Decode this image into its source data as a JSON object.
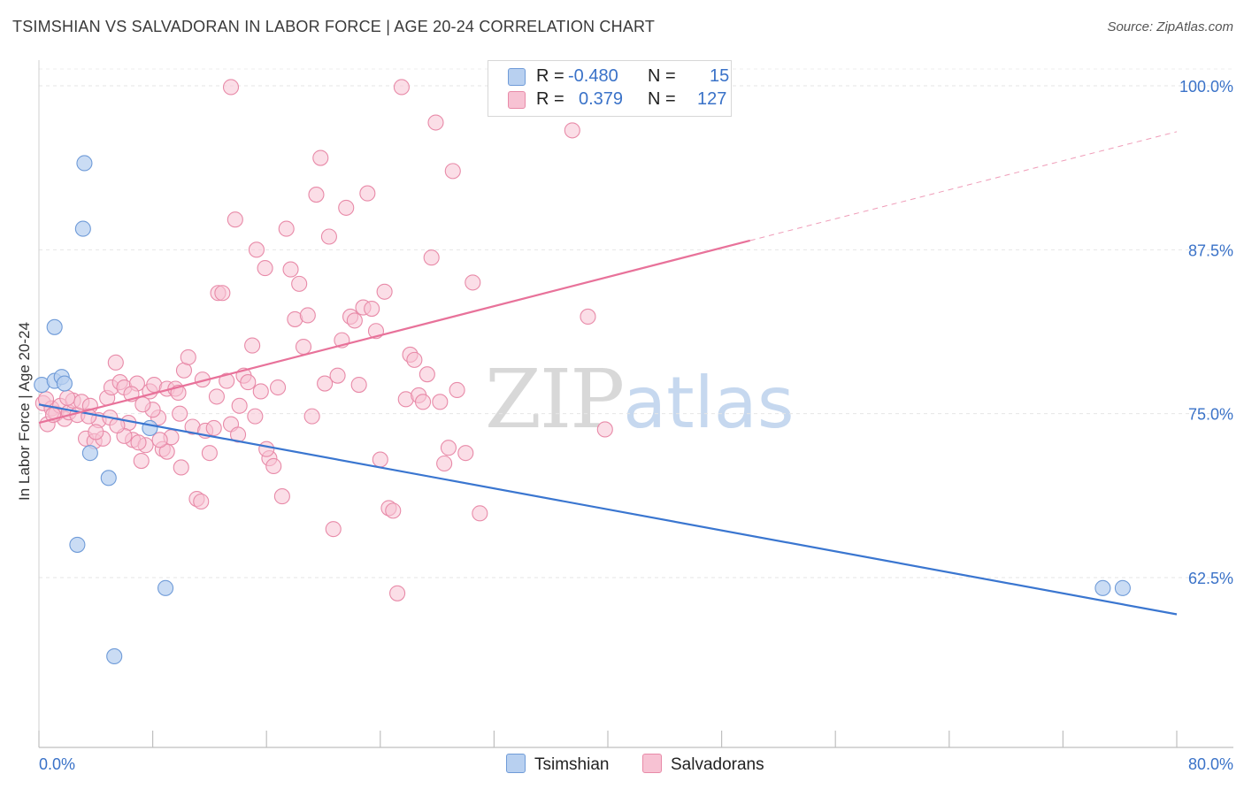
{
  "title": "TSIMSHIAN VS SALVADORAN IN LABOR FORCE | AGE 20-24 CORRELATION CHART",
  "source": "Source: ZipAtlas.com",
  "watermark": {
    "zip": "ZIP",
    "atlas": "atlas"
  },
  "colors": {
    "tsimshian_fill": "#b8d0f0",
    "tsimshian_stroke": "#6f9bd8",
    "tsimshian_line": "#3a76d0",
    "salvadoran_fill": "#f7c2d3",
    "salvadoran_stroke": "#e88aa8",
    "salvadoran_line": "#e8729a",
    "tick_label": "#3a72c8"
  },
  "legend": {
    "rows": [
      {
        "r_label": "R =",
        "r_value": "-0.480",
        "n_label": "N =",
        "n_value": "15"
      },
      {
        "r_label": "R =",
        "r_value": "0.379",
        "n_label": "N =",
        "n_value": "127"
      }
    ]
  },
  "chart_data": {
    "type": "scatter",
    "title": "TSIMSHIAN VS SALVADORAN IN LABOR FORCE | AGE 20-24 CORRELATION CHART",
    "xlabel": "",
    "ylabel": "In Labor Force | Age 20-24",
    "xlim": [
      0,
      80
    ],
    "ylim": [
      50,
      101
    ],
    "x_tick_labels": [
      "0.0%",
      "80.0%"
    ],
    "y_ticks": [
      62.5,
      75.0,
      87.5,
      100.0
    ],
    "y_tick_labels": [
      "62.5%",
      "75.0%",
      "87.5%",
      "100.0%"
    ],
    "grid": true,
    "legend_position": "top-center",
    "series": [
      {
        "name": "Tsimshian",
        "color": "#b8d0f0",
        "points": [
          [
            0.2,
            77.2
          ],
          [
            1.1,
            77.5
          ],
          [
            1.6,
            77.8
          ],
          [
            1.8,
            77.3
          ],
          [
            1.1,
            81.6
          ],
          [
            3.2,
            94.1
          ],
          [
            3.1,
            89.1
          ],
          [
            3.6,
            72.0
          ],
          [
            4.9,
            70.1
          ],
          [
            2.7,
            65.0
          ],
          [
            7.8,
            73.9
          ],
          [
            8.9,
            61.7
          ],
          [
            5.3,
            56.5
          ],
          [
            74.8,
            61.7
          ],
          [
            76.2,
            61.7
          ]
        ],
        "trend": {
          "x": [
            0,
            80
          ],
          "y": [
            75.7,
            59.7
          ]
        }
      },
      {
        "name": "Salvadorans",
        "color": "#f7c2d3",
        "points": [
          [
            0.3,
            75.8
          ],
          [
            0.6,
            74.2
          ],
          [
            0.9,
            75.4
          ],
          [
            1.2,
            75.0
          ],
          [
            1.5,
            75.6
          ],
          [
            1.8,
            74.6
          ],
          [
            2.1,
            75.1
          ],
          [
            2.4,
            76.0
          ],
          [
            2.7,
            74.9
          ],
          [
            3.0,
            75.9
          ],
          [
            3.3,
            73.1
          ],
          [
            3.6,
            75.6
          ],
          [
            3.9,
            72.9
          ],
          [
            4.2,
            74.5
          ],
          [
            4.5,
            73.1
          ],
          [
            4.8,
            76.2
          ],
          [
            5.1,
            77.0
          ],
          [
            5.4,
            78.9
          ],
          [
            5.7,
            77.4
          ],
          [
            6.0,
            77.0
          ],
          [
            6.3,
            74.3
          ],
          [
            6.6,
            73.0
          ],
          [
            6.9,
            77.3
          ],
          [
            7.2,
            71.4
          ],
          [
            7.5,
            72.6
          ],
          [
            7.8,
            76.7
          ],
          [
            8.1,
            77.2
          ],
          [
            8.4,
            74.7
          ],
          [
            8.7,
            72.3
          ],
          [
            9.0,
            76.9
          ],
          [
            9.3,
            73.2
          ],
          [
            9.6,
            76.9
          ],
          [
            9.9,
            75.0
          ],
          [
            10.2,
            78.3
          ],
          [
            10.5,
            79.3
          ],
          [
            10.8,
            74.0
          ],
          [
            11.1,
            68.5
          ],
          [
            11.4,
            68.3
          ],
          [
            11.7,
            73.7
          ],
          [
            12.0,
            72.0
          ],
          [
            12.3,
            73.9
          ],
          [
            12.6,
            84.2
          ],
          [
            12.9,
            84.2
          ],
          [
            13.2,
            77.5
          ],
          [
            13.5,
            74.2
          ],
          [
            13.8,
            89.8
          ],
          [
            14.1,
            75.6
          ],
          [
            14.4,
            77.9
          ],
          [
            14.7,
            77.4
          ],
          [
            15.0,
            80.2
          ],
          [
            15.3,
            87.5
          ],
          [
            15.6,
            76.7
          ],
          [
            15.9,
            86.1
          ],
          [
            16.2,
            71.6
          ],
          [
            16.5,
            71.0
          ],
          [
            16.8,
            77.0
          ],
          [
            17.1,
            68.7
          ],
          [
            17.4,
            89.1
          ],
          [
            17.7,
            86.0
          ],
          [
            18.0,
            82.2
          ],
          [
            18.3,
            84.9
          ],
          [
            18.6,
            80.1
          ],
          [
            18.9,
            82.5
          ],
          [
            19.2,
            74.8
          ],
          [
            19.5,
            91.7
          ],
          [
            19.8,
            94.5
          ],
          [
            20.1,
            77.3
          ],
          [
            20.4,
            88.5
          ],
          [
            20.7,
            66.2
          ],
          [
            21.0,
            77.9
          ],
          [
            21.3,
            80.6
          ],
          [
            21.6,
            90.7
          ],
          [
            21.9,
            82.4
          ],
          [
            22.2,
            82.1
          ],
          [
            22.5,
            77.2
          ],
          [
            22.8,
            83.1
          ],
          [
            23.1,
            91.8
          ],
          [
            23.4,
            83.0
          ],
          [
            23.7,
            81.3
          ],
          [
            24.0,
            71.5
          ],
          [
            24.3,
            84.3
          ],
          [
            24.6,
            67.8
          ],
          [
            24.9,
            67.6
          ],
          [
            25.2,
            61.3
          ],
          [
            25.5,
            99.9
          ],
          [
            25.8,
            76.1
          ],
          [
            26.1,
            79.5
          ],
          [
            26.4,
            79.1
          ],
          [
            26.7,
            76.4
          ],
          [
            27.0,
            75.9
          ],
          [
            27.3,
            78.0
          ],
          [
            27.6,
            86.9
          ],
          [
            27.9,
            97.2
          ],
          [
            28.2,
            75.9
          ],
          [
            28.5,
            71.2
          ],
          [
            28.8,
            72.4
          ],
          [
            29.1,
            93.5
          ],
          [
            29.4,
            76.8
          ],
          [
            30.0,
            72.0
          ],
          [
            30.5,
            85.0
          ],
          [
            31.0,
            67.4
          ],
          [
            37.5,
            96.6
          ],
          [
            38.6,
            82.4
          ],
          [
            39.8,
            73.8
          ],
          [
            13.5,
            99.9
          ],
          [
            5.0,
            74.7
          ],
          [
            6.0,
            73.3
          ],
          [
            7.0,
            72.8
          ],
          [
            8.0,
            75.3
          ],
          [
            9.0,
            72.1
          ],
          [
            10.0,
            70.9
          ],
          [
            3.5,
            74.8
          ],
          [
            2.0,
            76.2
          ],
          [
            4.0,
            73.6
          ],
          [
            5.5,
            74.1
          ],
          [
            6.5,
            76.5
          ],
          [
            1.0,
            74.9
          ],
          [
            0.5,
            76.1
          ],
          [
            8.5,
            73.0
          ],
          [
            9.8,
            76.6
          ],
          [
            11.5,
            77.6
          ],
          [
            12.5,
            76.3
          ],
          [
            14.0,
            73.4
          ],
          [
            15.2,
            74.8
          ],
          [
            16.0,
            72.3
          ],
          [
            7.3,
            75.7
          ],
          [
            44.0,
            99.9
          ]
        ],
        "trend": {
          "x": [
            0,
            50
          ],
          "y": [
            74.3,
            88.2
          ]
        },
        "trend_dashed": {
          "x": [
            50,
            80
          ],
          "y": [
            88.2,
            96.5
          ]
        }
      }
    ]
  },
  "bottom_legend": [
    {
      "label": "Tsimshian"
    },
    {
      "label": "Salvadorans"
    }
  ]
}
